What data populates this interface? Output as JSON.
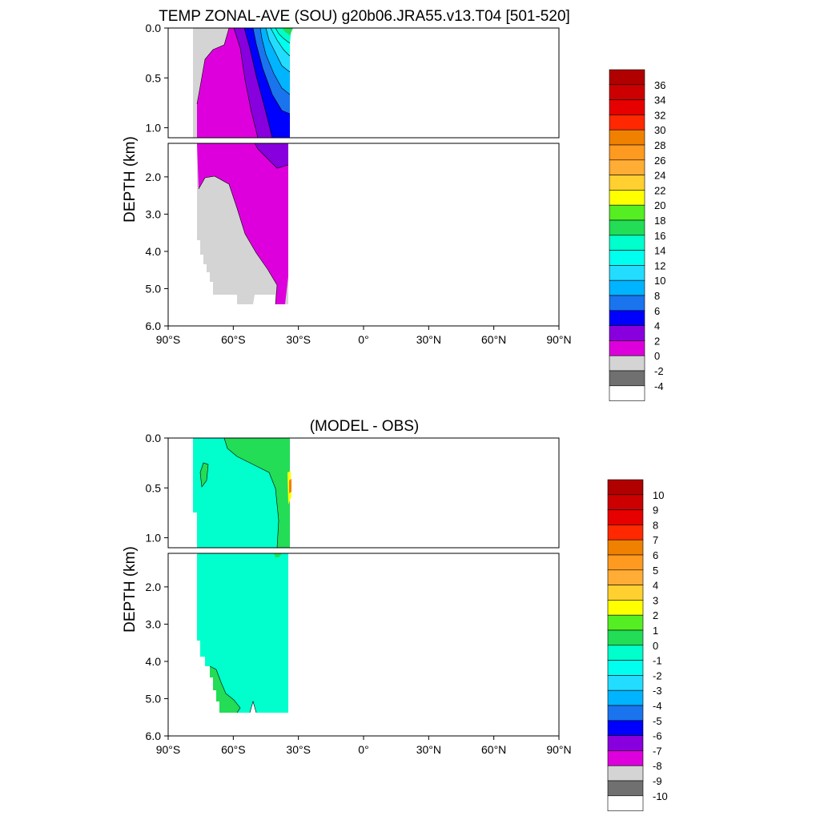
{
  "chart_data": [
    {
      "type": "contour",
      "title": "TEMP ZONAL-AVE (SOU) g20b06.JRA55.v13.T04 [501-520]",
      "ylabel": "DEPTH (km)",
      "x_ticks": [
        "90°S",
        "60°S",
        "30°S",
        "0°",
        "30°N",
        "60°N",
        "90°N"
      ],
      "xlim": [
        -90,
        90
      ],
      "upper_panel": {
        "ylim": [
          0,
          1.1
        ],
        "y_ticks": [
          "0.0",
          "0.5",
          "1.0"
        ]
      },
      "lower_panel": {
        "ylim": [
          1.1,
          6.0
        ],
        "y_ticks": [
          "2.0",
          "3.0",
          "4.0",
          "5.0",
          "6.0"
        ]
      },
      "colorbar": {
        "levels": [
          "36",
          "34",
          "32",
          "30",
          "28",
          "26",
          "24",
          "22",
          "20",
          "18",
          "16",
          "14",
          "12",
          "10",
          "8",
          "6",
          "4",
          "2",
          "0",
          "-2",
          "-4"
        ],
        "colors": [
          "#b00000",
          "#cc0000",
          "#e60000",
          "#ff2800",
          "#f08000",
          "#ff9a20",
          "#ffad35",
          "#ffd030",
          "#ffff00",
          "#55ee22",
          "#22dd55",
          "#00ffcc",
          "#00ffee",
          "#22ddff",
          "#00b4ff",
          "#1a74ee",
          "#0000ff",
          "#8800dd",
          "#dd00dd",
          "#d4d4d4",
          "#707070",
          "#ffffff"
        ]
      },
      "field_description": "Zonal-mean temperature (deg C) defined only from about 78°S to 34°S; warm (4-20) near surface at 35-55°S, 0-2 °C over most of the deep ocean, below 0 near the Antarctic bottom"
    },
    {
      "type": "contour",
      "title": "(MODEL - OBS)",
      "ylabel": "DEPTH (km)",
      "x_ticks": [
        "90°S",
        "60°S",
        "30°S",
        "0°",
        "30°N",
        "60°N",
        "90°N"
      ],
      "xlim": [
        -90,
        90
      ],
      "upper_panel": {
        "ylim": [
          0,
          1.1
        ],
        "y_ticks": [
          "0.0",
          "0.5",
          "1.0"
        ]
      },
      "lower_panel": {
        "ylim": [
          1.1,
          6.0
        ],
        "y_ticks": [
          "2.0",
          "3.0",
          "4.0",
          "5.0",
          "6.0"
        ]
      },
      "colorbar": {
        "levels": [
          "10",
          "9",
          "8",
          "7",
          "6",
          "5",
          "4",
          "3",
          "2",
          "1",
          "0",
          "-1",
          "-2",
          "-3",
          "-4",
          "-5",
          "-6",
          "-7",
          "-8",
          "-9",
          "-10"
        ],
        "colors": [
          "#b00000",
          "#cc0000",
          "#e60000",
          "#ff2800",
          "#f08000",
          "#ff9a20",
          "#ffad35",
          "#ffd030",
          "#ffff00",
          "#55ee22",
          "#22dd55",
          "#00ffcc",
          "#00ffee",
          "#22ddff",
          "#00b4ff",
          "#1a74ee",
          "#0000ff",
          "#8800dd",
          "#dd00dd",
          "#d4d4d4",
          "#707070",
          "#ffffff"
        ]
      },
      "field_description": "Model minus observed temperature; mostly between -1 and 0, with a 0 to 1 band near the surface between about 55°S and 34°S and near the Antarctic bottom"
    }
  ]
}
